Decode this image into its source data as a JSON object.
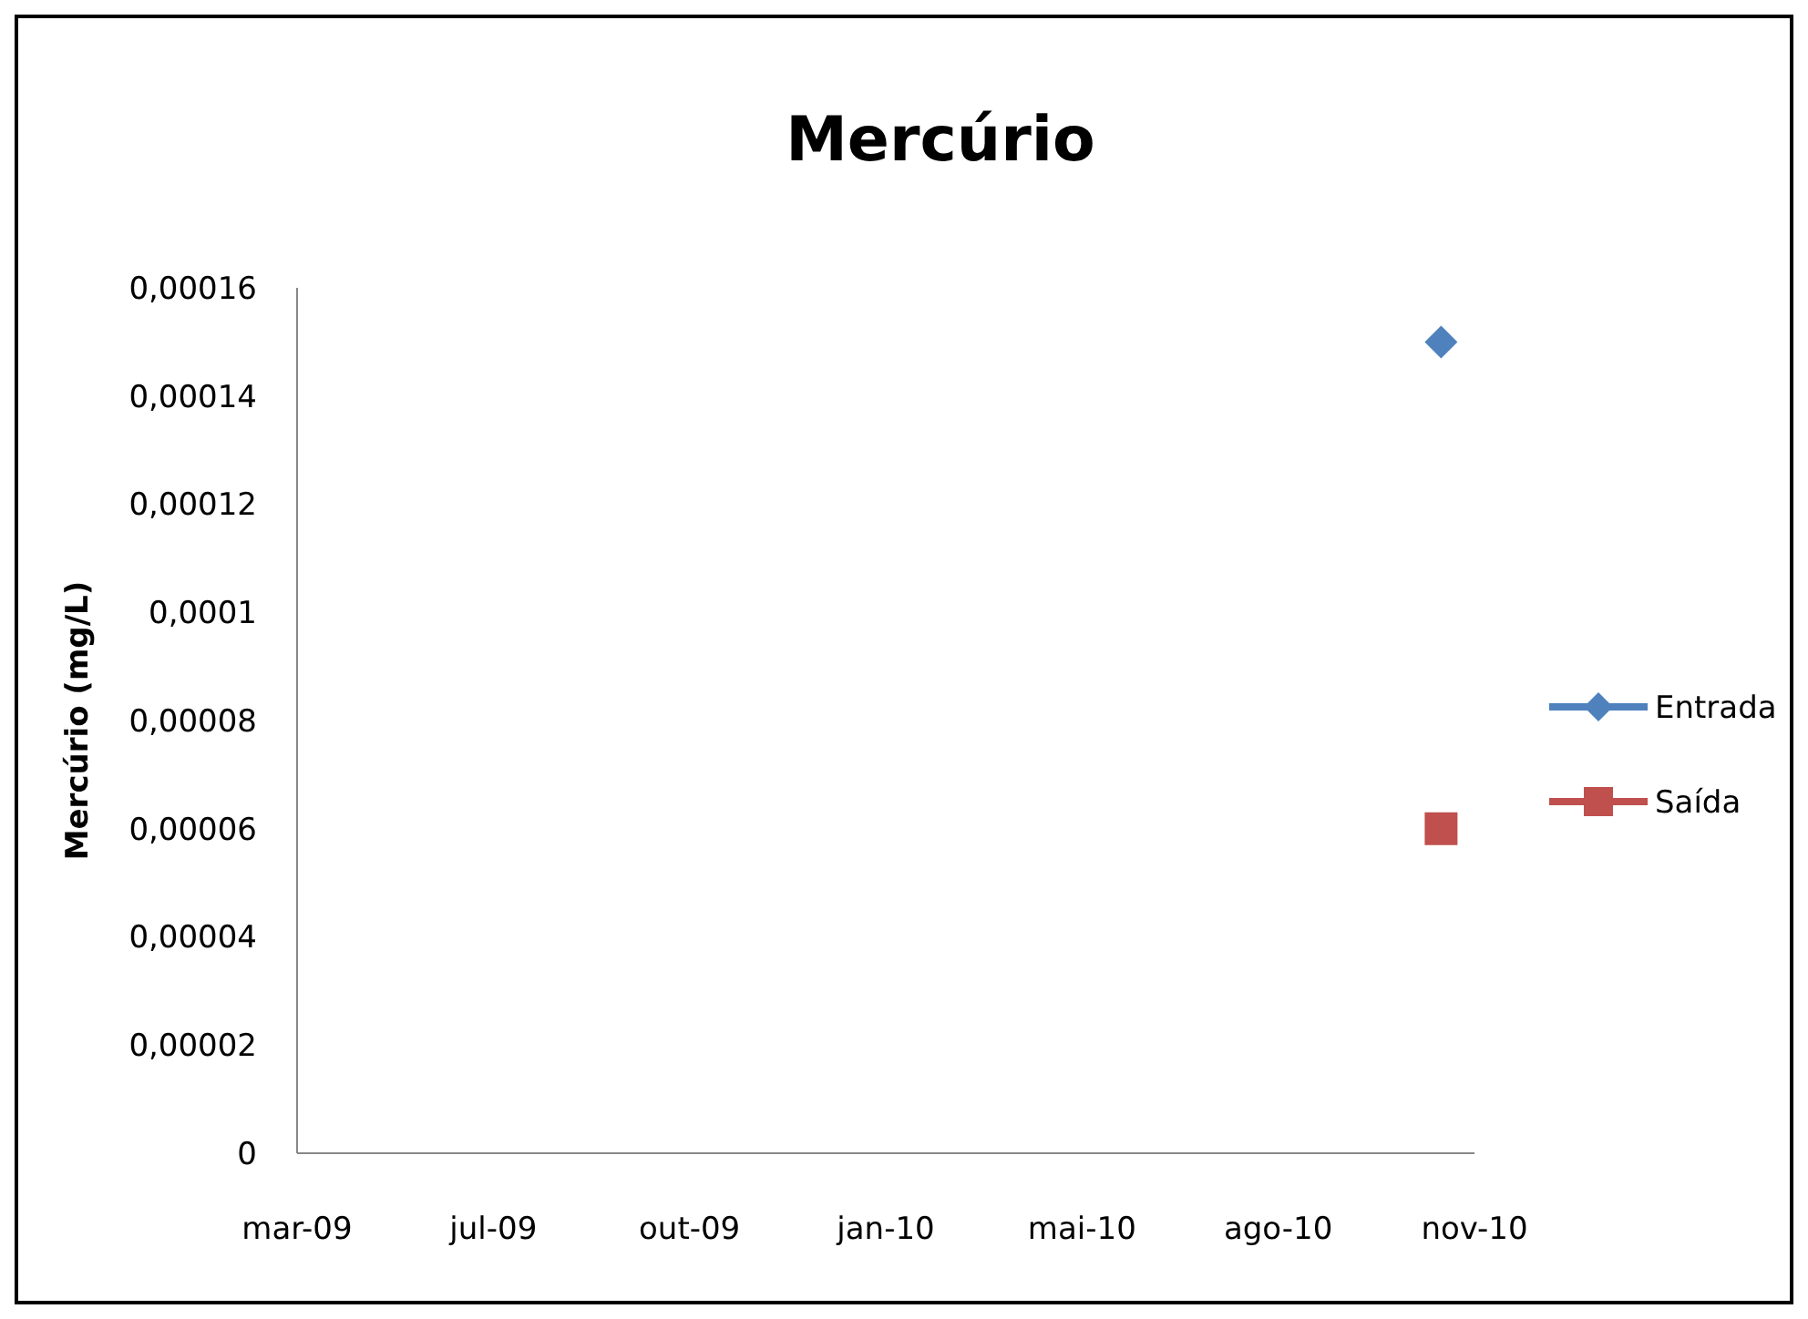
{
  "chart_data": {
    "type": "line",
    "title": "Mercúrio",
    "ylabel": "Mercúrio (mg/L)",
    "x": [
      "2010-11-04"
    ],
    "series": [
      {
        "name": "Entrada",
        "color": "#4f81bd",
        "values": [
          0.00015
        ],
        "marker": "diamond"
      },
      {
        "name": "Saída",
        "color": "#c0504d",
        "values": [
          6e-05
        ],
        "marker": "square"
      }
    ],
    "xlim": [
      "2009-03-31",
      "2010-11-21"
    ],
    "xticks": [
      {
        "value": "2009-03-31",
        "label": "mar-09"
      },
      {
        "value": "2009-07-09",
        "label": "jul-09"
      },
      {
        "value": "2009-10-17",
        "label": "out-09"
      },
      {
        "value": "2010-01-25",
        "label": "jan-10"
      },
      {
        "value": "2010-05-05",
        "label": "mai-10"
      },
      {
        "value": "2010-08-13",
        "label": "ago-10"
      },
      {
        "value": "2010-11-21",
        "label": "nov-10"
      }
    ],
    "ylim": [
      0,
      0.00016
    ],
    "yticks": [
      {
        "value": 0,
        "label": "0"
      },
      {
        "value": 2e-05,
        "label": "0,00002"
      },
      {
        "value": 4e-05,
        "label": "0,00004"
      },
      {
        "value": 6e-05,
        "label": "0,00006"
      },
      {
        "value": 8e-05,
        "label": "0,00008"
      },
      {
        "value": 0.0001,
        "label": "0,0001"
      },
      {
        "value": 0.00012,
        "label": "0,00012"
      },
      {
        "value": 0.00014,
        "label": "0,00014"
      },
      {
        "value": 0.00016,
        "label": "0,00016"
      }
    ],
    "grid": false,
    "legend": "right",
    "line_style": "solid"
  }
}
